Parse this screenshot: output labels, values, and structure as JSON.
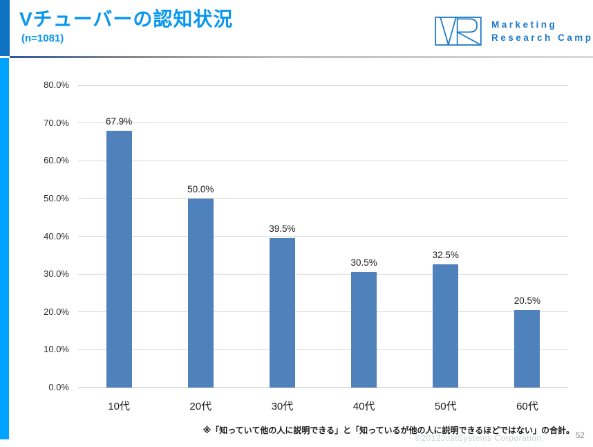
{
  "header": {
    "title": "Vチューバーの認知状況",
    "subtitle": "(n=1081)",
    "accent_color": "#0797F1"
  },
  "logo": {
    "name": "marketing-research-camp-logo",
    "text_line1": "Marketing",
    "text_line2": "Research Camp",
    "color": "#1B79C6"
  },
  "chart_data": {
    "type": "bar",
    "title": "",
    "xlabel": "",
    "ylabel": "",
    "categories": [
      "10代",
      "20代",
      "30代",
      "40代",
      "50代",
      "60代"
    ],
    "values": [
      67.9,
      50.0,
      39.5,
      30.5,
      32.5,
      20.5
    ],
    "data_labels": [
      "67.9%",
      "50.0%",
      "39.5%",
      "30.5%",
      "32.5%",
      "20.5%"
    ],
    "ylim": [
      0,
      80
    ],
    "ytick_step": 10,
    "ytick_labels": [
      "0.0%",
      "10.0%",
      "20.0%",
      "30.0%",
      "40.0%",
      "50.0%",
      "60.0%",
      "70.0%",
      "80.0%"
    ],
    "grid": "horizontal",
    "legend": "none",
    "bar_color": "#4F81BD",
    "gridline_color": "#DADADA"
  },
  "footer": {
    "note": "※「知っていて他の人に説明できる」と「知っているが他の人に説明できるほどではない」の合計。",
    "watermark": "©2012JustSystems Corporation",
    "page_number": "52"
  }
}
